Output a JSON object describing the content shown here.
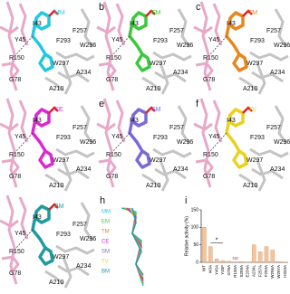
{
  "panels": [
    {
      "ligand": "MM",
      "color": "#22c8e0",
      "residues": [
        "Y45",
        "I43",
        "F257",
        "F293",
        "W296",
        "W297",
        "R150",
        "G78",
        "A234",
        "A210"
      ]
    },
    {
      "letter": "b",
      "ligand": "EM",
      "color": "#3cc83c",
      "residues": [
        "Y45",
        "I43",
        "F257",
        "F293",
        "W296",
        "W297",
        "R150",
        "G78",
        "A234",
        "A210"
      ]
    },
    {
      "letter": "c",
      "ligand": "TM",
      "color": "#e8861e",
      "residues": [
        "Y45",
        "I43",
        "F257",
        "F293",
        "W296",
        "W297",
        "R150",
        "G78",
        "A234",
        "A210"
      ]
    },
    {
      "ligand": "CE",
      "color": "#d82ad0",
      "residues": [
        "Y45",
        "I43",
        "F257",
        "F293",
        "W296",
        "W297",
        "R150",
        "G78",
        "A234",
        "A210"
      ]
    },
    {
      "letter": "e",
      "ligand": "SM",
      "color": "#7a6ad8",
      "residues": [
        "Y45",
        "I43",
        "F257",
        "F293",
        "W296",
        "W297",
        "R150",
        "G78",
        "A234",
        "A210"
      ]
    },
    {
      "letter": "f",
      "ligand": "TV",
      "color": "#e8d21e",
      "residues": [
        "Y45",
        "I43",
        "F257",
        "F293",
        "W296",
        "W297",
        "R150",
        "G78",
        "A234",
        "A210"
      ]
    },
    {
      "ligand": "BM",
      "color": "#1e9aa0",
      "residues": [
        "Y45",
        "I43",
        "F257",
        "F293",
        "W296",
        "W297",
        "R150",
        "G78",
        "A234",
        "A210"
      ]
    }
  ],
  "overlay": {
    "letter": "h",
    "legend": [
      {
        "name": "MM",
        "color": "#22c8e0"
      },
      {
        "name": "EM",
        "color": "#3cc83c"
      },
      {
        "name": "TM",
        "color": "#e8861e"
      },
      {
        "name": "CE",
        "color": "#d82ad0"
      },
      {
        "name": "SM",
        "color": "#7a6ad8"
      },
      {
        "name": "TV",
        "color": "#e8d21e"
      },
      {
        "name": "BM",
        "color": "#1e9aa0"
      }
    ]
  },
  "chart_data": {
    "type": "bar",
    "letter": "i",
    "ylabel": "Relative activity (%)",
    "categories": [
      "WT",
      "I43A",
      "Y45A",
      "Y45F",
      "G78A",
      "R150A",
      "S209A",
      "E234A",
      "A234L",
      "F257A",
      "F293A",
      "W296A",
      "W297A",
      "H333A"
    ],
    "values": [
      100,
      45,
      10,
      5,
      3,
      null,
      2,
      1,
      50,
      30,
      45,
      35,
      2,
      1
    ],
    "value_labels": [
      null,
      null,
      null,
      null,
      null,
      "ND",
      null,
      null,
      null,
      null,
      null,
      null,
      null,
      null
    ],
    "annotation": "*",
    "color": "#f5c49a",
    "ylim": [
      0,
      150
    ],
    "yticks": [
      0,
      50,
      100,
      150
    ]
  }
}
